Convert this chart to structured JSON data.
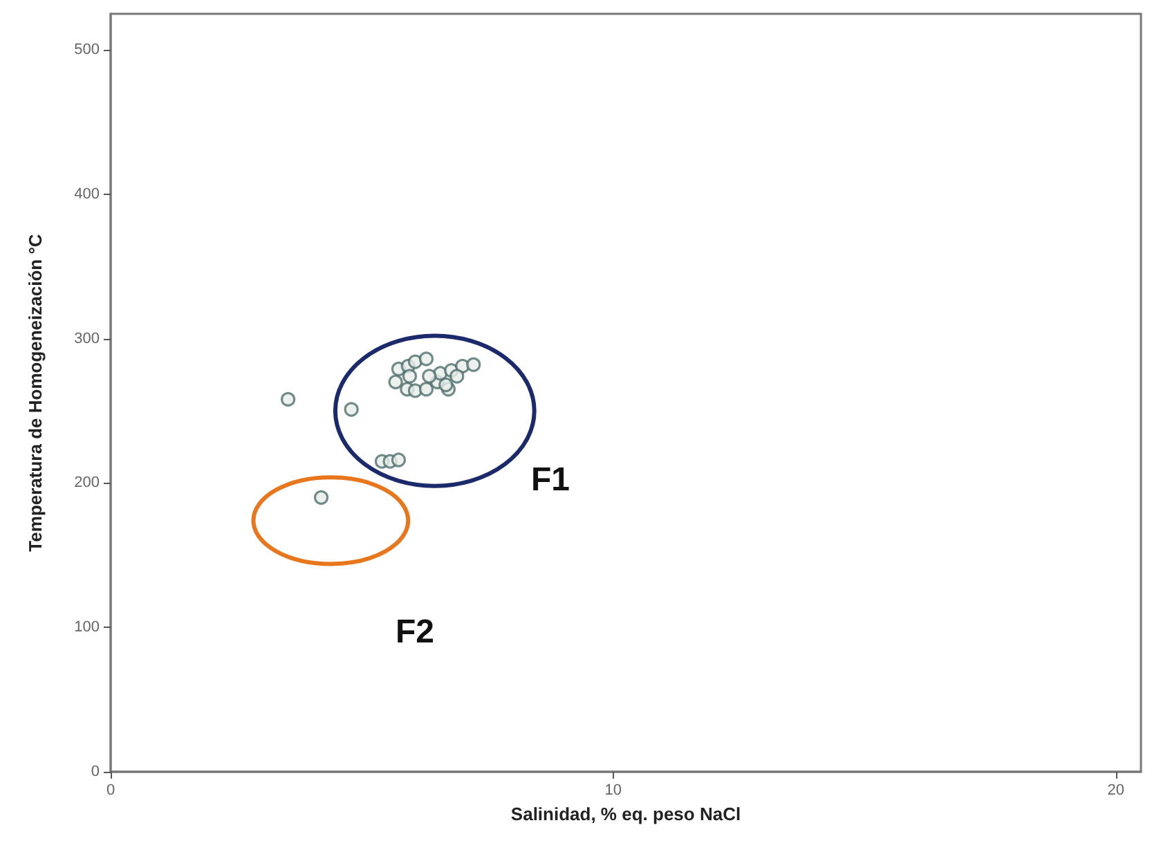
{
  "chart_data": {
    "type": "scatter",
    "xlabel": "Salinidad, % eq. peso NaCl",
    "ylabel": "Temperatura de Homogeneización °C",
    "xlim": [
      0,
      20.5
    ],
    "ylim": [
      0,
      525
    ],
    "xticks": [
      0,
      10,
      20
    ],
    "yticks": [
      0,
      100,
      200,
      300,
      400,
      500
    ],
    "grid": false,
    "marker": "circle",
    "annotations": [
      "F1",
      "F2"
    ],
    "series": [
      {
        "color": "#4f6f6c",
        "x": [
          3.53,
          4.79,
          4.19,
          5.4,
          5.56,
          5.73,
          5.73,
          5.92,
          6.06,
          6.28,
          5.67,
          5.9,
          6.06,
          6.28,
          6.5,
          6.72,
          6.56,
          6.78,
          7.0,
          7.22,
          6.34,
          5.95,
          6.89,
          6.67
        ],
        "values": [
          258,
          251,
          190,
          215,
          215,
          216,
          279,
          281,
          284,
          286,
          270,
          265,
          264,
          265,
          270,
          265,
          276,
          278,
          281,
          282,
          274,
          274,
          274,
          268
        ]
      }
    ]
  }
}
